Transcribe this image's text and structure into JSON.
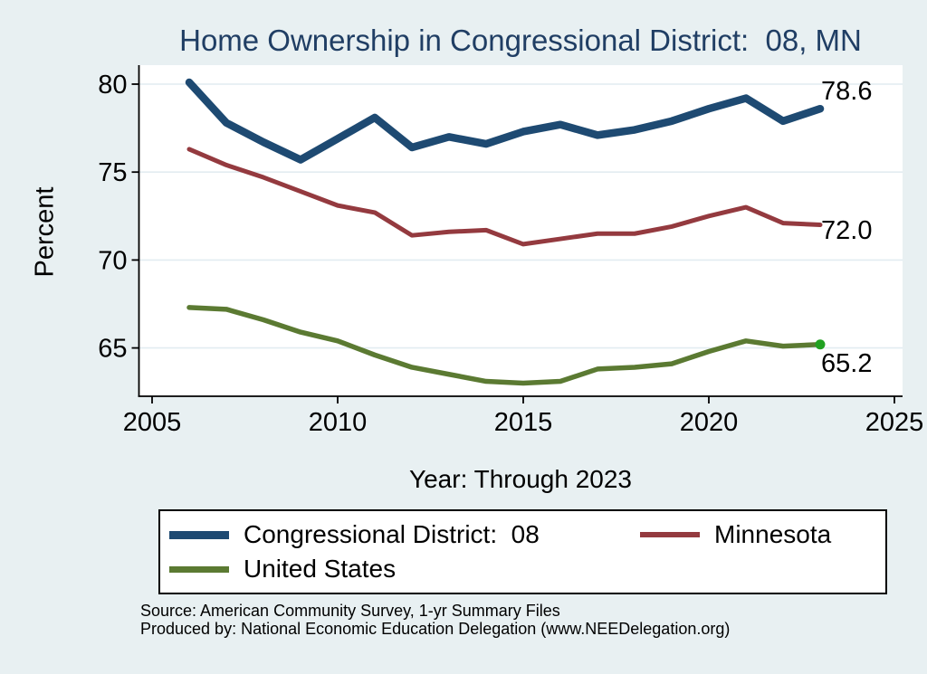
{
  "title": "Home Ownership in Congressional District:  08, MN",
  "chart_data": {
    "type": "line",
    "title": "Home Ownership in Congressional District:  08, MN",
    "xlabel": "Year: Through 2023",
    "ylabel": "Percent",
    "x_ticks": [
      2005,
      2010,
      2015,
      2020,
      2025
    ],
    "y_ticks": [
      65,
      70,
      75,
      80
    ],
    "xlim": [
      2004.6,
      2025.2
    ],
    "ylim": [
      62.2,
      81.1
    ],
    "grid": "horizontal",
    "legend_position": "below-plot-boxed",
    "x": [
      2006,
      2007,
      2008,
      2009,
      2010,
      2011,
      2012,
      2013,
      2014,
      2015,
      2016,
      2017,
      2018,
      2019,
      2020,
      2021,
      2022,
      2023
    ],
    "series": [
      {
        "name": "Congressional District:  08",
        "color": "#1e4a72",
        "line_width": 8.5,
        "end_label": "78.6",
        "values": [
          80.1,
          77.8,
          76.7,
          75.7,
          76.9,
          78.1,
          76.4,
          77.0,
          76.6,
          77.3,
          77.7,
          77.1,
          77.4,
          77.9,
          78.6,
          79.2,
          77.9,
          78.6
        ]
      },
      {
        "name": "Minnesota",
        "color": "#943a3f",
        "line_width": 5,
        "end_label": "72.0",
        "values": [
          76.3,
          75.4,
          74.7,
          73.9,
          73.1,
          72.7,
          71.4,
          71.6,
          71.7,
          70.9,
          71.2,
          71.5,
          71.5,
          71.9,
          72.5,
          73.0,
          72.1,
          72.0
        ]
      },
      {
        "name": "United States",
        "color": "#5b7a32",
        "line_width": 5.5,
        "end_label": "65.2",
        "end_marker_color": "#21a121",
        "values": [
          67.3,
          67.2,
          66.6,
          65.9,
          65.4,
          64.6,
          63.9,
          63.5,
          63.1,
          63.0,
          63.1,
          63.8,
          63.9,
          64.1,
          64.8,
          65.4,
          65.1,
          65.2
        ]
      }
    ],
    "colors": {
      "background": "#e8f0f2",
      "plot_background": "#ffffff",
      "gridline": "#e2ecf1",
      "title_text": "#203e64",
      "axis_text": "#000000"
    }
  },
  "source_line1": "Source: American Community Survey, 1-yr Summary Files",
  "source_line2": "Produced by: National Economic Education Delegation (www.NEEDelegation.org)"
}
